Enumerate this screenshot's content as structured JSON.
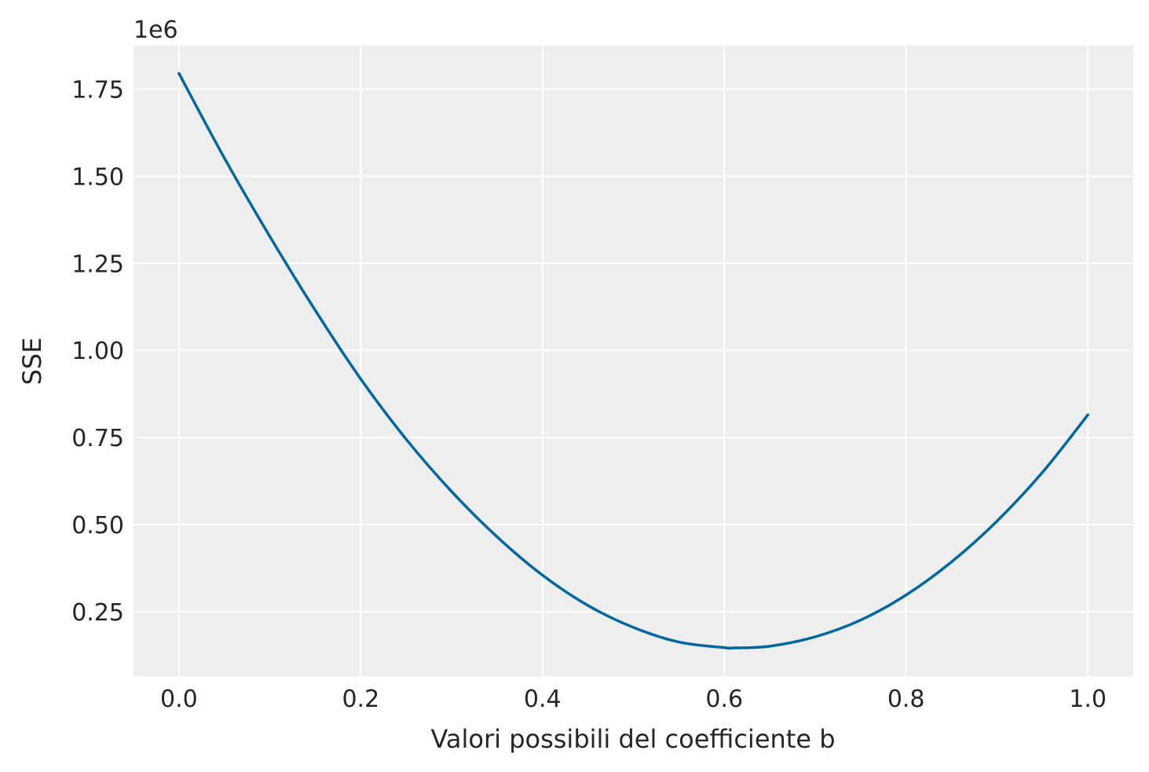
{
  "chart_data": {
    "type": "line",
    "title": "",
    "xlabel": "Valori possibili del coefficiente b",
    "ylabel": "SSE",
    "y_offset_label": "1e6",
    "xlim": [
      -0.05,
      1.05
    ],
    "ylim": [
      0.065,
      1.875
    ],
    "x_ticks": [
      0.0,
      0.2,
      0.4,
      0.6,
      0.8,
      1.0
    ],
    "x_tick_labels": [
      "0.0",
      "0.2",
      "0.4",
      "0.6",
      "0.8",
      "1.0"
    ],
    "y_ticks": [
      0.25,
      0.5,
      0.75,
      1.0,
      1.25,
      1.5,
      1.75
    ],
    "y_tick_labels": [
      "0.25",
      "0.50",
      "0.75",
      "1.00",
      "1.25",
      "1.50",
      "1.75"
    ],
    "grid": true,
    "background": "#eeeeee",
    "line_color": "#0067a0",
    "series": [
      {
        "x": [
          0.0,
          0.05,
          0.1,
          0.15,
          0.2,
          0.25,
          0.3,
          0.35,
          0.4,
          0.45,
          0.5,
          0.55,
          0.6,
          0.61,
          0.65,
          0.7,
          0.75,
          0.8,
          0.85,
          0.9,
          0.95,
          1.0
        ],
        "values": [
          1.795,
          1.552,
          1.327,
          1.115,
          0.918,
          0.745,
          0.595,
          0.465,
          0.355,
          0.268,
          0.205,
          0.163,
          0.147,
          0.146,
          0.151,
          0.178,
          0.226,
          0.298,
          0.393,
          0.51,
          0.65,
          0.815
        ]
      }
    ]
  }
}
